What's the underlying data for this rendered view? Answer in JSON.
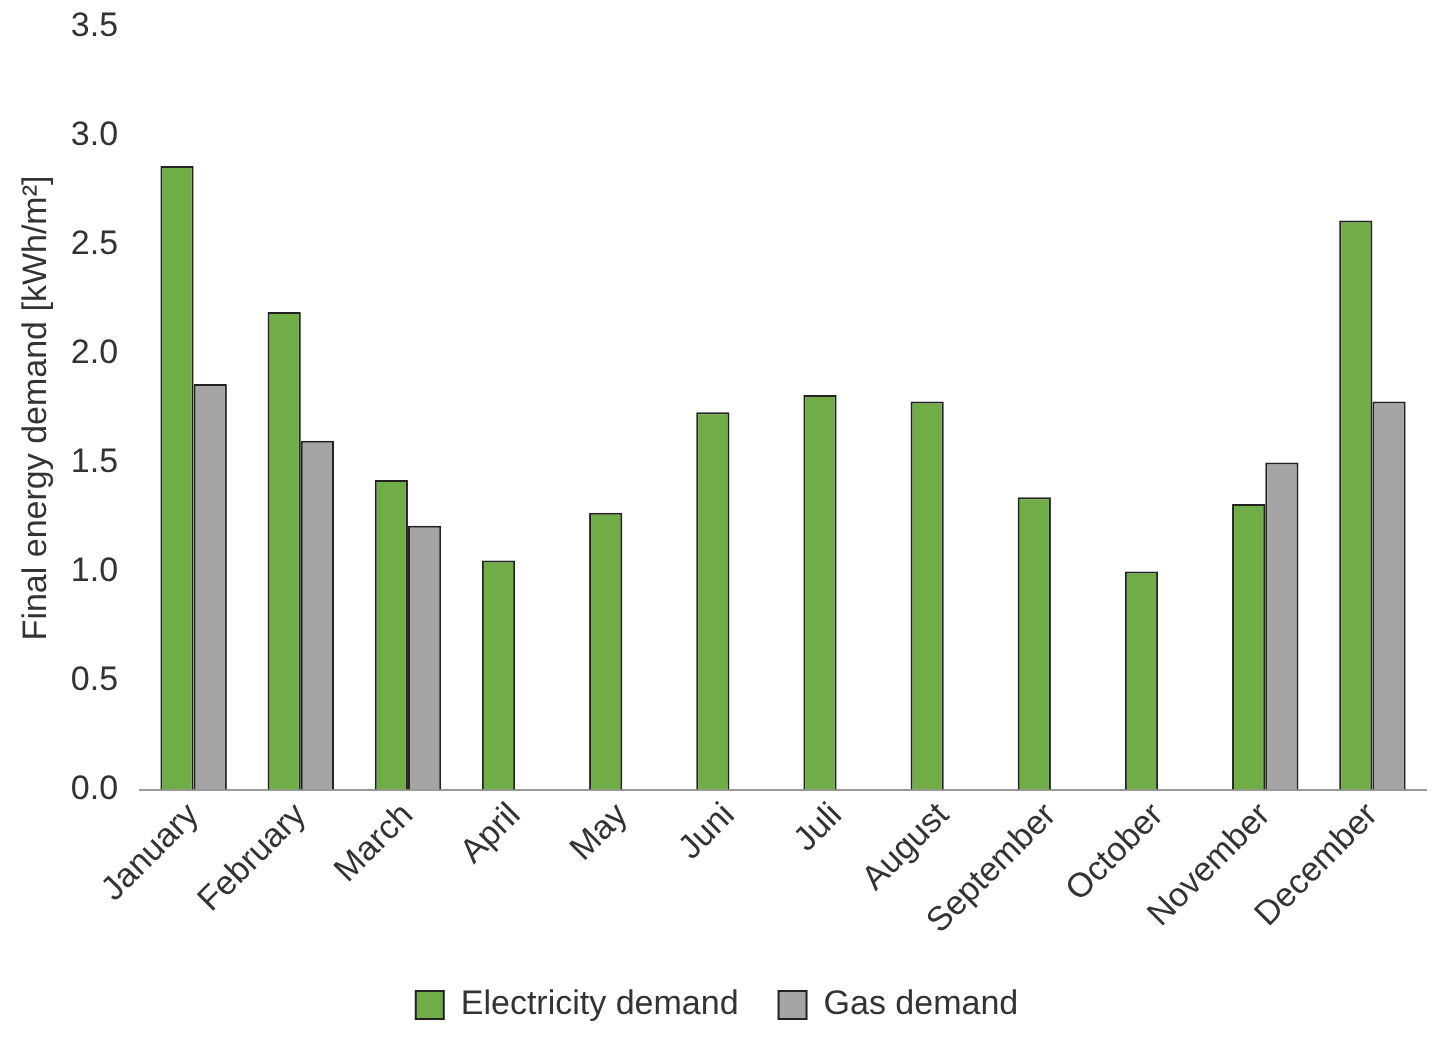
{
  "chart_data": {
    "type": "bar",
    "ylabel": "Final energy demand [kWh/m²]",
    "categories": [
      "January",
      "February",
      "March",
      "April",
      "May",
      "Juni",
      "Juli",
      "August",
      "September",
      "October",
      "November",
      "December"
    ],
    "series": [
      {
        "name": "Electricity demand",
        "color": "#70ad47",
        "values": [
          2.86,
          2.19,
          1.42,
          1.05,
          1.27,
          1.73,
          1.81,
          1.78,
          1.34,
          1.0,
          1.31,
          2.61
        ]
      },
      {
        "name": "Gas demand",
        "color": "#a5a5a5",
        "values": [
          1.86,
          1.6,
          1.21,
          null,
          null,
          null,
          null,
          null,
          null,
          null,
          1.5,
          1.78
        ]
      }
    ],
    "ylim": [
      0,
      3.5
    ],
    "yticks": [
      {
        "value": 0,
        "label": "0.0"
      },
      {
        "value": 0.5,
        "label": "0.5"
      },
      {
        "value": 1,
        "label": "1.0"
      },
      {
        "value": 1.5,
        "label": "1.5"
      },
      {
        "value": 2,
        "label": "2.0"
      },
      {
        "value": 2.5,
        "label": "2.5"
      },
      {
        "value": 3,
        "label": "3.0"
      },
      {
        "value": 3.5,
        "label": "3.5"
      }
    ],
    "grid": false,
    "legend": "bottom"
  }
}
